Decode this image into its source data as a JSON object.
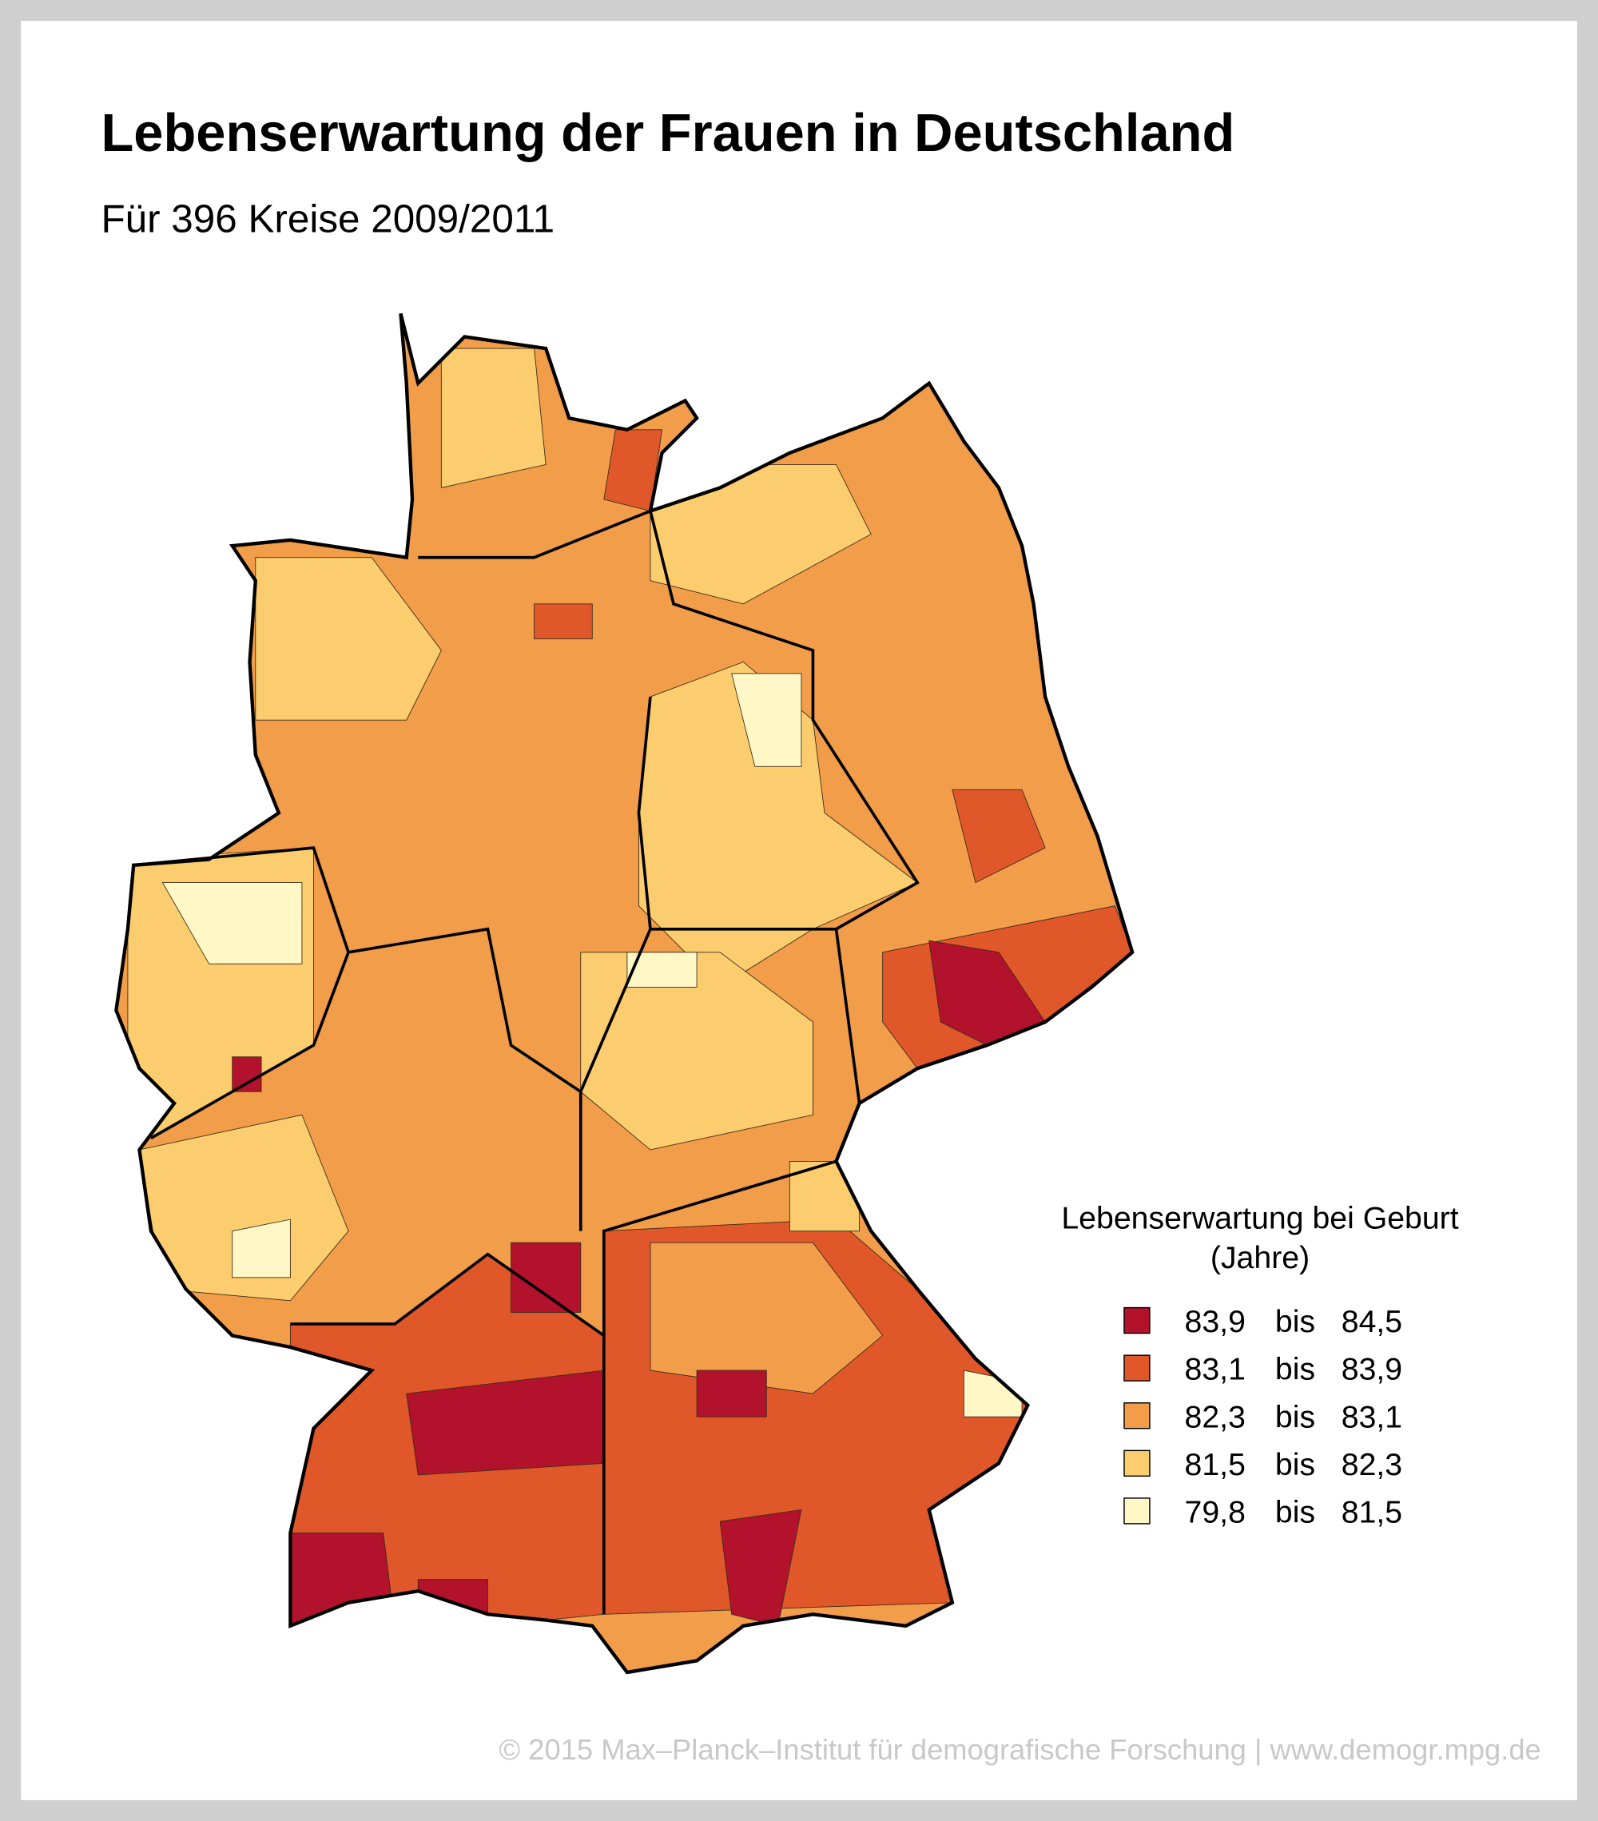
{
  "header": {
    "title": "Lebenserwartung der Frauen in Deutschland",
    "subtitle": "Für 396 Kreise 2009/2011"
  },
  "legend": {
    "title": "Lebenserwartung bei Geburt",
    "unit": "(Jahre)",
    "classes": [
      {
        "color": "#b3122c",
        "from": "83,9",
        "connector": "bis",
        "to": "84,5"
      },
      {
        "color": "#e0582a",
        "from": "83,1",
        "connector": "bis",
        "to": "83,9"
      },
      {
        "color": "#f19d4a",
        "from": "82,3",
        "connector": "bis",
        "to": "83,1"
      },
      {
        "color": "#fccd6e",
        "from": "81,5",
        "connector": "bis",
        "to": "82,3"
      },
      {
        "color": "#fff7c6",
        "from": "79,8",
        "connector": "bis",
        "to": "81,5"
      }
    ]
  },
  "footer": "© 2015 Max–Planck–Institut für demografische Forschung | www.demogr.mpg.de"
}
